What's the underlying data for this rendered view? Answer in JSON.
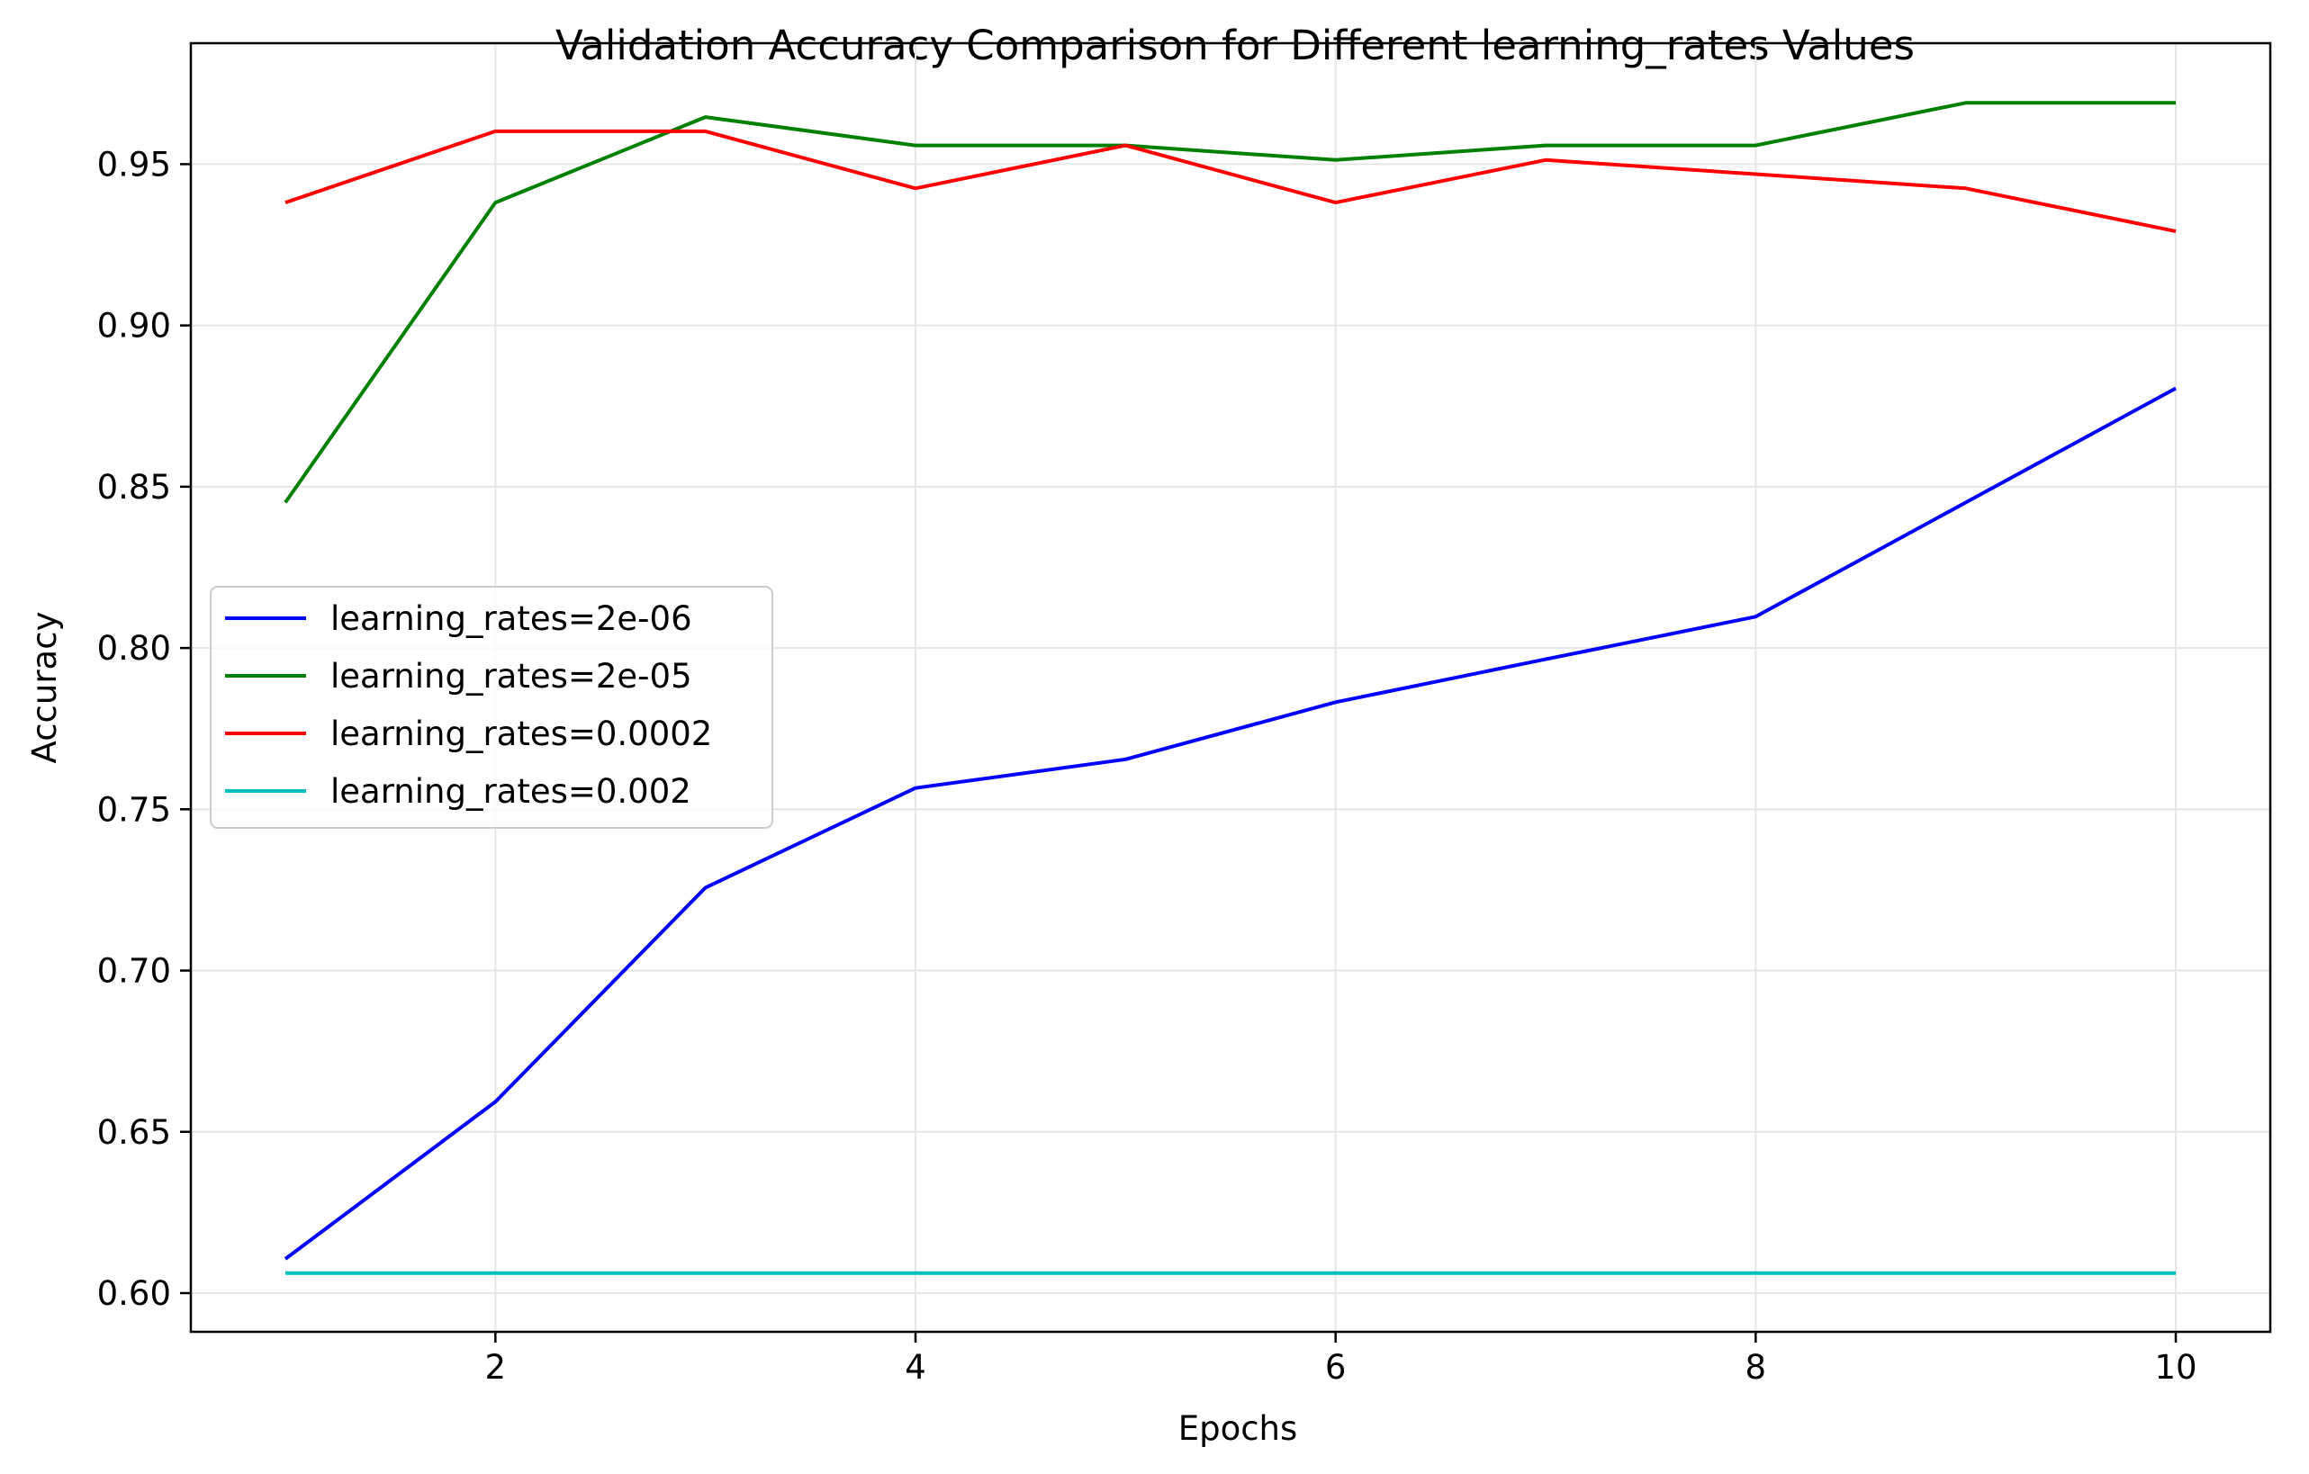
{
  "chart_data": {
    "type": "line",
    "title": "Validation Accuracy Comparison for Different learning_rates Values",
    "xlabel": "Epochs",
    "ylabel": "Accuracy",
    "x": [
      1,
      2,
      3,
      4,
      5,
      6,
      7,
      8,
      9,
      10
    ],
    "xlim": [
      0.55,
      10.45
    ],
    "ylim": [
      0.588,
      0.9875
    ],
    "xticks": [
      2,
      4,
      6,
      8,
      10
    ],
    "xtick_labels": [
      "2",
      "4",
      "6",
      "8",
      "10"
    ],
    "yticks": [
      0.6,
      0.65,
      0.7,
      0.75,
      0.8,
      0.85,
      0.9,
      0.95
    ],
    "ytick_labels": [
      "0.60",
      "0.65",
      "0.70",
      "0.75",
      "0.80",
      "0.85",
      "0.90",
      "0.95"
    ],
    "grid": true,
    "legend_position": "center-left",
    "series": [
      {
        "name": "learning_rates=2e-06",
        "color": "#0000ff",
        "values": [
          0.6106,
          0.6593,
          0.7257,
          0.7566,
          0.7655,
          0.7832,
          0.7965,
          0.8097,
          0.8451,
          0.8805
        ]
      },
      {
        "name": "learning_rates=2e-05",
        "color": "#008000",
        "values": [
          0.8451,
          0.9381,
          0.9646,
          0.9558,
          0.9558,
          0.9513,
          0.9558,
          0.9558,
          0.969,
          0.969
        ]
      },
      {
        "name": "learning_rates=0.0002",
        "color": "#ff0000",
        "values": [
          0.9381,
          0.9602,
          0.9602,
          0.9425,
          0.9558,
          0.9381,
          0.9513,
          0.9469,
          0.9425,
          0.9292
        ]
      },
      {
        "name": "learning_rates=0.002",
        "color": "#00bfbf",
        "values": [
          0.6062,
          0.6062,
          0.6062,
          0.6062,
          0.6062,
          0.6062,
          0.6062,
          0.6062,
          0.6062,
          0.6062
        ]
      }
    ]
  }
}
